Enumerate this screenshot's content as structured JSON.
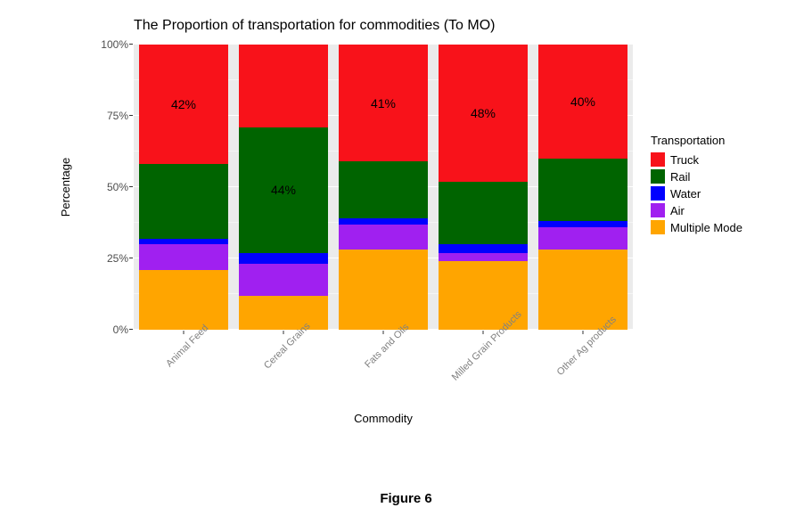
{
  "chart": {
    "type": "stacked-bar-100pct",
    "title": "The Proportion of transportation for commodities (To MO)",
    "x_axis_title": "Commodity",
    "y_axis_title": "Percentage",
    "panel_bg": "#ebebeb",
    "grid_major_color": "#ffffff",
    "grid_minor_color": "#f5f5f5",
    "tick_color": "#333333",
    "tick_label_color": "#4d4d4d",
    "x_tick_label_color": "#808080",
    "title_fontsize": 16,
    "axis_title_fontsize": 13,
    "tick_fontsize": 12,
    "bar_width": 0.9,
    "y_ticks": [
      {
        "pos": 0,
        "label": "0%"
      },
      {
        "pos": 0.25,
        "label": "25%"
      },
      {
        "pos": 0.5,
        "label": "50%"
      },
      {
        "pos": 0.75,
        "label": "75%"
      },
      {
        "pos": 1.0,
        "label": "100%"
      }
    ],
    "y_minor": [
      0.125,
      0.375,
      0.625,
      0.875
    ],
    "categories": [
      "Animal Feed",
      "Cereal Grains",
      "Fats and Oils",
      "Milled Grain Products",
      "Other Ag products"
    ],
    "stack_order": [
      "Multiple Mode",
      "Air",
      "Water",
      "Rail",
      "Truck"
    ],
    "series_colors": {
      "Truck": "#f8121a",
      "Rail": "#006400",
      "Water": "#0000ff",
      "Air": "#a020f0",
      "Multiple Mode": "#ffa500"
    },
    "legend": {
      "title": "Transportation",
      "order": [
        "Truck",
        "Rail",
        "Water",
        "Air",
        "Multiple Mode"
      ]
    },
    "data": {
      "Animal Feed": {
        "Multiple Mode": 21,
        "Air": 9,
        "Water": 2,
        "Rail": 26,
        "Truck": 42
      },
      "Cereal Grains": {
        "Multiple Mode": 12,
        "Air": 11,
        "Water": 4,
        "Rail": 44,
        "Truck": 29
      },
      "Fats and Oils": {
        "Multiple Mode": 28,
        "Air": 9,
        "Water": 2,
        "Rail": 20,
        "Truck": 41
      },
      "Milled Grain Products": {
        "Multiple Mode": 24,
        "Air": 3,
        "Water": 3,
        "Rail": 22,
        "Truck": 48
      },
      "Other Ag products": {
        "Multiple Mode": 28,
        "Air": 8,
        "Water": 2,
        "Rail": 22,
        "Truck": 40
      }
    },
    "highlight_labels": [
      {
        "category": "Animal Feed",
        "text": "42%",
        "stack_key": "Truck"
      },
      {
        "category": "Cereal Grains",
        "text": "44%",
        "stack_key": "Rail"
      },
      {
        "category": "Fats and Oils",
        "text": "41%",
        "stack_key": "Truck"
      },
      {
        "category": "Milled Grain Products",
        "text": "48%",
        "stack_key": "Truck"
      },
      {
        "category": "Other Ag products",
        "text": "40%",
        "stack_key": "Truck"
      }
    ]
  },
  "caption": "Figure 6"
}
